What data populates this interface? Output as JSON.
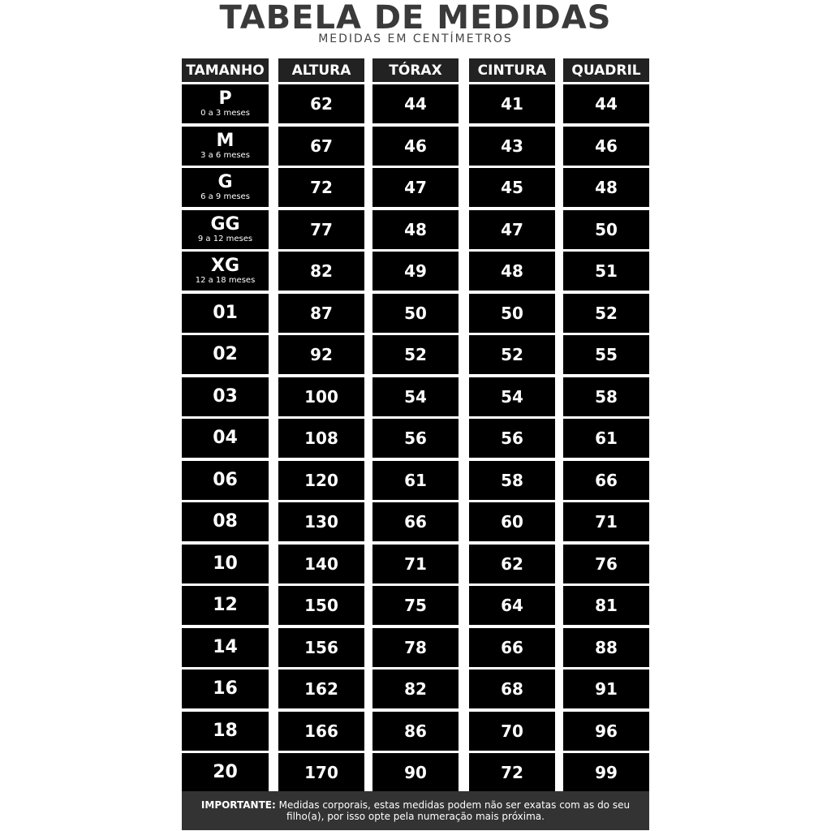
{
  "header": {
    "title": "TABELA DE MEDIDAS",
    "subtitle": "MEDIDAS EM CENTÍMETROS"
  },
  "table": {
    "columns": [
      "TAMANHO",
      "ALTURA",
      "TÓRAX",
      "CINTURA",
      "QUADRIL"
    ],
    "rows": [
      {
        "size": "P",
        "age": "0 a 3 meses",
        "values": [
          62,
          44,
          41,
          44
        ]
      },
      {
        "size": "M",
        "age": "3 a 6 meses",
        "values": [
          67,
          46,
          43,
          46
        ]
      },
      {
        "size": "G",
        "age": "6 a 9 meses",
        "values": [
          72,
          47,
          45,
          48
        ]
      },
      {
        "size": "GG",
        "age": "9 a 12 meses",
        "values": [
          77,
          48,
          47,
          50
        ]
      },
      {
        "size": "XG",
        "age": "12 a 18 meses",
        "values": [
          82,
          49,
          48,
          51
        ]
      },
      {
        "size": "01",
        "values": [
          87,
          50,
          50,
          52
        ]
      },
      {
        "size": "02",
        "values": [
          92,
          52,
          52,
          55
        ]
      },
      {
        "size": "03",
        "values": [
          100,
          54,
          54,
          58
        ]
      },
      {
        "size": "04",
        "values": [
          108,
          56,
          56,
          61
        ]
      },
      {
        "size": "06",
        "values": [
          120,
          61,
          58,
          66
        ]
      },
      {
        "size": "08",
        "values": [
          130,
          66,
          60,
          71
        ]
      },
      {
        "size": "10",
        "values": [
          140,
          71,
          62,
          76
        ]
      },
      {
        "size": "12",
        "values": [
          150,
          75,
          64,
          81
        ]
      },
      {
        "size": "14",
        "values": [
          156,
          78,
          66,
          88
        ]
      },
      {
        "size": "16",
        "values": [
          162,
          82,
          68,
          91
        ]
      },
      {
        "size": "18",
        "values": [
          166,
          86,
          70,
          96
        ]
      },
      {
        "size": "20",
        "values": [
          170,
          90,
          72,
          99
        ]
      }
    ]
  },
  "note": {
    "label": "IMPORTANTE:",
    "text": "Medidas corporais, estas medidas podem não ser exatas com as do seu filho(a), por isso opte pela numeração mais próxima."
  }
}
